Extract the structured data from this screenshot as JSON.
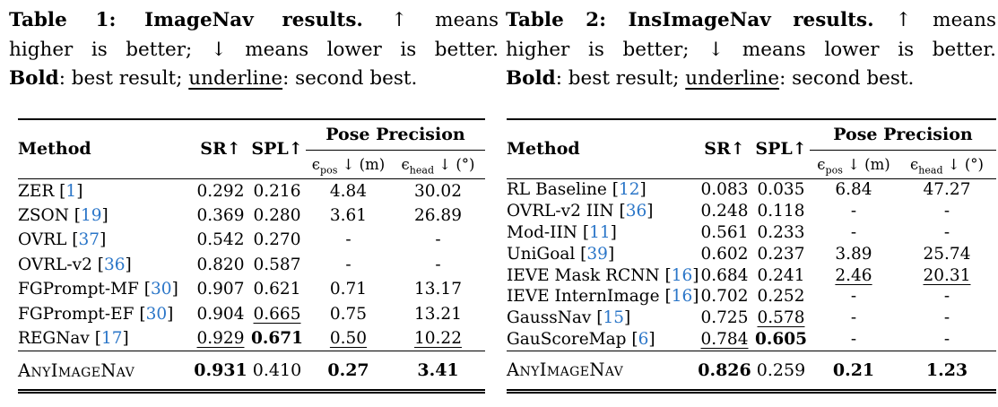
{
  "colors": {
    "background": "#ffffff",
    "text": "#000000",
    "citation": "#2b76c8"
  },
  "captions": [
    {
      "line1_bold": "Table 1: ImageNav results.",
      "line1_rest": "↑ means",
      "line2": "higher is better; ↓ means lower is better.",
      "line3_bold": "Bold",
      "line3_mid": ": best result; ",
      "line3_underline": "underline",
      "line3_end": ": second best."
    },
    {
      "line1_bold": "Table 2: InsImageNav results.",
      "line1_rest": "↑ means",
      "line2": "higher is better; ↓ means lower is better.",
      "line3_bold": "Bold",
      "line3_mid": ": best result; ",
      "line3_underline": "underline",
      "line3_end": ": second best."
    }
  ],
  "tables": [
    {
      "name": "ImageNav results",
      "headers": {
        "method": "Method",
        "sr": "SR↑",
        "spl": "SPL↑",
        "pose_group": "Pose Precision",
        "eps_pos": {
          "sym": "ϵ",
          "sub": "pos",
          "rest": " ↓ (m)"
        },
        "eps_head": {
          "sym": "ϵ",
          "sub": "head",
          "rest": " ↓ (°)"
        }
      },
      "rows": [
        {
          "method": "ZER",
          "cite": "1",
          "cells": [
            {
              "v": "0.292"
            },
            {
              "v": "0.216"
            },
            {
              "v": "4.84"
            },
            {
              "v": "30.02"
            }
          ]
        },
        {
          "method": "ZSON",
          "cite": "19",
          "cells": [
            {
              "v": "0.369"
            },
            {
              "v": "0.280"
            },
            {
              "v": "3.61"
            },
            {
              "v": "26.89"
            }
          ]
        },
        {
          "method": "OVRL",
          "cite": "37",
          "cells": [
            {
              "v": "0.542"
            },
            {
              "v": "0.270"
            },
            {
              "v": "-"
            },
            {
              "v": "-"
            }
          ]
        },
        {
          "method": "OVRL-v2",
          "cite": "36",
          "cells": [
            {
              "v": "0.820"
            },
            {
              "v": "0.587"
            },
            {
              "v": "-"
            },
            {
              "v": "-"
            }
          ]
        },
        {
          "method": "FGPrompt-MF",
          "cite": "30",
          "cells": [
            {
              "v": "0.907"
            },
            {
              "v": "0.621"
            },
            {
              "v": "0.71"
            },
            {
              "v": "13.17"
            }
          ]
        },
        {
          "method": "FGPrompt-EF",
          "cite": "30",
          "cells": [
            {
              "v": "0.904"
            },
            {
              "v": "0.665",
              "f": "u"
            },
            {
              "v": "0.75"
            },
            {
              "v": "13.21"
            }
          ]
        },
        {
          "method": "REGNav",
          "cite": "17",
          "cells": [
            {
              "v": "0.929",
              "f": "u"
            },
            {
              "v": "0.671",
              "f": "b"
            },
            {
              "v": "0.50",
              "f": "u"
            },
            {
              "v": "10.22",
              "f": "u"
            }
          ]
        }
      ],
      "final_row": {
        "method": "AnyImageNav",
        "cells": [
          {
            "v": "0.931",
            "f": "b"
          },
          {
            "v": "0.410"
          },
          {
            "v": "0.27",
            "f": "b"
          },
          {
            "v": "3.41",
            "f": "b"
          }
        ]
      }
    },
    {
      "name": "InsImageNav results",
      "headers": {
        "method": "Method",
        "sr": "SR↑",
        "spl": "SPL↑",
        "pose_group": "Pose Precision",
        "eps_pos": {
          "sym": "ϵ",
          "sub": "pos",
          "rest": " ↓ (m)"
        },
        "eps_head": {
          "sym": "ϵ",
          "sub": "head",
          "rest": " ↓ (°)"
        }
      },
      "rows": [
        {
          "method": "RL Baseline",
          "cite": "12",
          "cells": [
            {
              "v": "0.083"
            },
            {
              "v": "0.035"
            },
            {
              "v": "6.84"
            },
            {
              "v": "47.27"
            }
          ]
        },
        {
          "method": "OVRL-v2 IIN",
          "cite": "36",
          "cells": [
            {
              "v": "0.248"
            },
            {
              "v": "0.118"
            },
            {
              "v": "-"
            },
            {
              "v": "-"
            }
          ]
        },
        {
          "method": "Mod-IIN",
          "cite": "11",
          "cells": [
            {
              "v": "0.561"
            },
            {
              "v": "0.233"
            },
            {
              "v": "-"
            },
            {
              "v": "-"
            }
          ]
        },
        {
          "method": "UniGoal",
          "cite": "39",
          "cells": [
            {
              "v": "0.602"
            },
            {
              "v": "0.237"
            },
            {
              "v": "3.89"
            },
            {
              "v": "25.74"
            }
          ]
        },
        {
          "method": "IEVE Mask RCNN",
          "cite": "16",
          "cells": [
            {
              "v": "0.684"
            },
            {
              "v": "0.241"
            },
            {
              "v": "2.46",
              "f": "u"
            },
            {
              "v": "20.31",
              "f": "u"
            }
          ]
        },
        {
          "method": "IEVE InternImage",
          "cite": "16",
          "cells": [
            {
              "v": "0.702"
            },
            {
              "v": "0.252"
            },
            {
              "v": "-"
            },
            {
              "v": "-"
            }
          ]
        },
        {
          "method": "GaussNav",
          "cite": "15",
          "cells": [
            {
              "v": "0.725"
            },
            {
              "v": "0.578",
              "f": "u"
            },
            {
              "v": "-"
            },
            {
              "v": "-"
            }
          ]
        },
        {
          "method": "GauScoreMap",
          "cite": "6",
          "cells": [
            {
              "v": "0.784",
              "f": "u"
            },
            {
              "v": "0.605",
              "f": "b"
            },
            {
              "v": "-"
            },
            {
              "v": "-"
            }
          ]
        }
      ],
      "final_row": {
        "method": "AnyImageNav",
        "cells": [
          {
            "v": "0.826",
            "f": "b"
          },
          {
            "v": "0.259"
          },
          {
            "v": "0.21",
            "f": "b"
          },
          {
            "v": "1.23",
            "f": "b"
          }
        ]
      }
    }
  ]
}
